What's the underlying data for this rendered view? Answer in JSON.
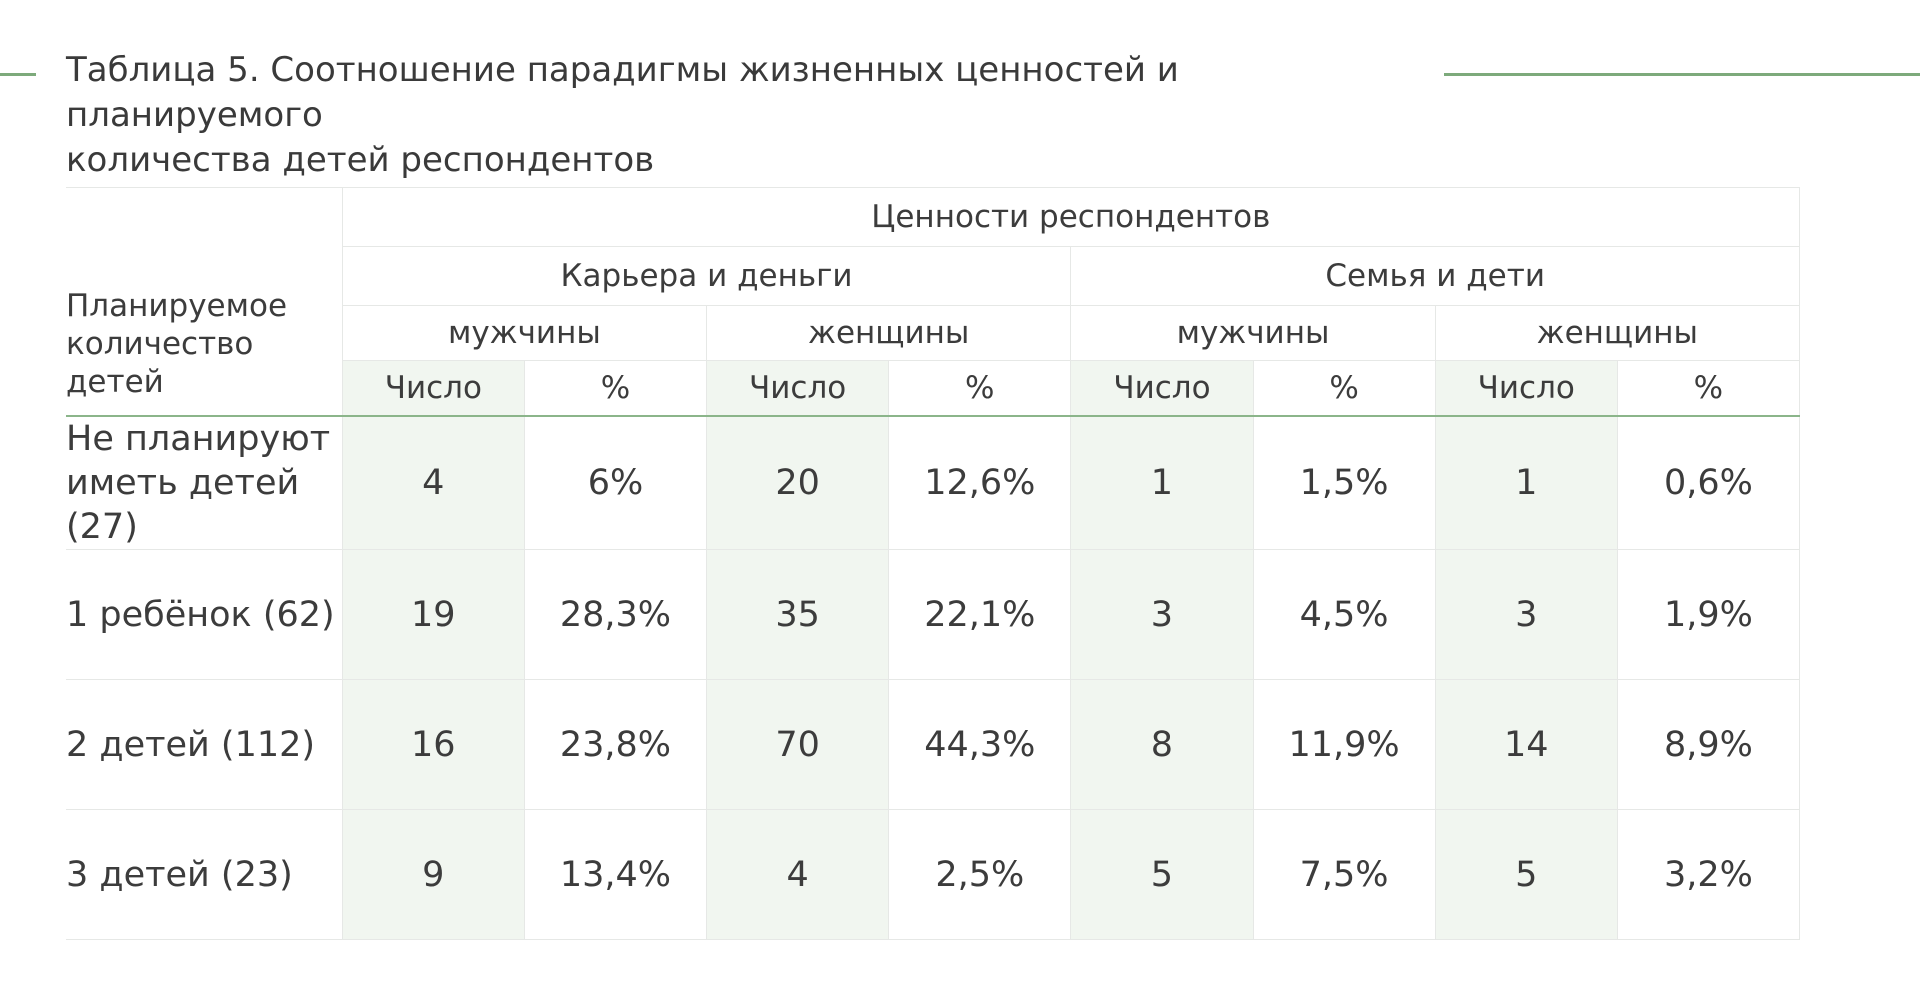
{
  "title": {
    "line1": "Таблица 5. Соотношение парадигмы жизненных ценностей и планируемого",
    "line2": "количества детей респондентов"
  },
  "table": {
    "row_header": {
      "line1": "Планируемое",
      "line2": "количество детей"
    },
    "top_header": "Ценности респондентов",
    "groups": [
      "Карьера и деньги",
      "Семья и дети"
    ],
    "genders": [
      "мужчины",
      "женщины",
      "мужчины",
      "женщины"
    ],
    "subcols": [
      "Число",
      "%",
      "Число",
      "%",
      "Число",
      "%",
      "Число",
      "%"
    ],
    "rows": [
      {
        "label_lines": [
          "Не планируют",
          "иметь детей (27)"
        ],
        "cells": [
          "4",
          "6%",
          "20",
          "12,6%",
          "1",
          "1,5%",
          "1",
          "0,6%"
        ]
      },
      {
        "label_lines": [
          "1 ребёнок (62)"
        ],
        "cells": [
          "19",
          "28,3%",
          "35",
          "22,1%",
          "3",
          "4,5%",
          "3",
          "1,9%"
        ]
      },
      {
        "label_lines": [
          "2 детей (112)"
        ],
        "cells": [
          "16",
          "23,8%",
          "70",
          "44,3%",
          "8",
          "11,9%",
          "14",
          "8,9%"
        ]
      },
      {
        "label_lines": [
          "3 детей (23)"
        ],
        "cells": [
          "9",
          "13,4%",
          "4",
          "2,5%",
          "5",
          "7,5%",
          "5",
          "3,2%"
        ]
      }
    ]
  },
  "colors": {
    "accent": "#7daa7b",
    "count_column_fill": "#f1f6f0",
    "border": "#e6e8e6"
  }
}
